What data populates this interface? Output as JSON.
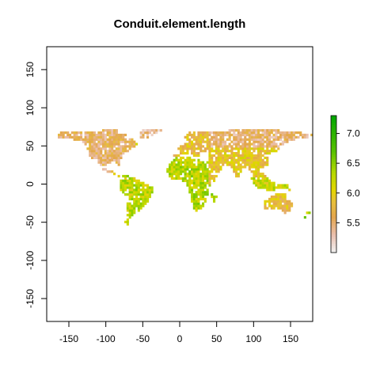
{
  "chart_data": {
    "type": "heatmap",
    "title": "Conduit.element.length",
    "xlabel": "",
    "ylabel": "",
    "xlim": [
      -180,
      180
    ],
    "ylim": [
      -180,
      180
    ],
    "x_ticks": [
      -150,
      -100,
      -50,
      0,
      50,
      100,
      150
    ],
    "y_ticks": [
      -150,
      -100,
      -50,
      0,
      50,
      100,
      150
    ],
    "x_tick_labels": [
      "-150",
      "-100",
      "-50",
      "0",
      "50",
      "100",
      "150"
    ],
    "y_tick_labels": [
      "-150",
      "-100",
      "-50",
      "0",
      "50",
      "100",
      "150"
    ],
    "grid": false,
    "legend_position": "right",
    "colorbar": {
      "min": 5.0,
      "max": 7.3,
      "ticks": [
        5.5,
        6.0,
        6.5,
        7.0
      ],
      "tick_labels": [
        "5.5",
        "6.0",
        "6.5",
        "7.0"
      ],
      "stops": [
        {
          "value": 5.0,
          "color": "#f2f2f2"
        },
        {
          "value": 5.3,
          "color": "#eabfae"
        },
        {
          "value": 5.6,
          "color": "#e3a64d"
        },
        {
          "value": 5.85,
          "color": "#e7bf3d"
        },
        {
          "value": 6.05,
          "color": "#e4d600"
        },
        {
          "value": 6.35,
          "color": "#b4d800"
        },
        {
          "value": 6.7,
          "color": "#59c100"
        },
        {
          "value": 7.3,
          "color": "#00a600"
        }
      ]
    },
    "regions": [
      {
        "name": "North America",
        "lon": [
          -165,
          -60
        ],
        "lat": [
          15,
          72
        ],
        "value": 5.55
      },
      {
        "name": "Mexico and Central America",
        "lon": [
          -118,
          -78
        ],
        "lat": [
          7,
          32
        ],
        "value": 6.15
      },
      {
        "name": "South America",
        "lon": [
          -82,
          -35
        ],
        "lat": [
          -55,
          12
        ],
        "value": 6.25
      },
      {
        "name": "Greenland and Iceland",
        "lon": [
          -55,
          -15
        ],
        "lat": [
          60,
          72
        ],
        "value": 5.4
      },
      {
        "name": "Europe",
        "lon": [
          -10,
          40
        ],
        "lat": [
          36,
          70
        ],
        "value": 5.8
      },
      {
        "name": "Northern Asia",
        "lon": [
          40,
          180
        ],
        "lat": [
          48,
          72
        ],
        "value": 5.5
      },
      {
        "name": "Southern Asia",
        "lon": [
          40,
          125
        ],
        "lat": [
          8,
          48
        ],
        "value": 5.9
      },
      {
        "name": "North Africa",
        "lon": [
          -17,
          40
        ],
        "lat": [
          0,
          35
        ],
        "value": 6.3
      },
      {
        "name": "Southern Africa",
        "lon": [
          10,
          50
        ],
        "lat": [
          -35,
          0
        ],
        "value": 6.3
      },
      {
        "name": "Southeast Asia",
        "lon": [
          95,
          150
        ],
        "lat": [
          -10,
          20
        ],
        "value": 6.2
      },
      {
        "name": "Australia",
        "lon": [
          114,
          154
        ],
        "lat": [
          -39,
          -11
        ],
        "value": 5.8
      },
      {
        "name": "New Zealand",
        "lon": [
          166,
          178
        ],
        "lat": [
          -47,
          -34
        ],
        "value": 6.4
      }
    ]
  }
}
